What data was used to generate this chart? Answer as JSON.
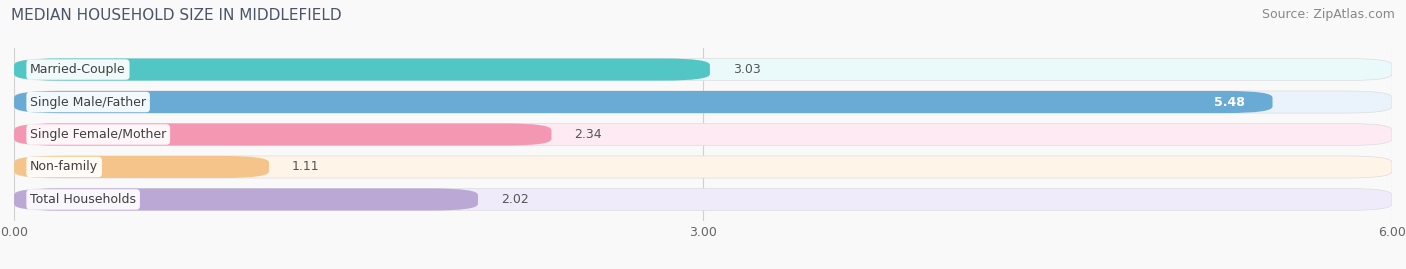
{
  "title": "MEDIAN HOUSEHOLD SIZE IN MIDDLEFIELD",
  "source": "Source: ZipAtlas.com",
  "categories": [
    "Married-Couple",
    "Single Male/Father",
    "Single Female/Mother",
    "Non-family",
    "Total Households"
  ],
  "values": [
    3.03,
    5.48,
    2.34,
    1.11,
    2.02
  ],
  "bar_colors": [
    "#52C5C5",
    "#6AABD6",
    "#F497B2",
    "#F5C48A",
    "#BBA8D4"
  ],
  "bg_colors": [
    "#EAFAFB",
    "#EAF2FB",
    "#FDEAF2",
    "#FEF5E8",
    "#F0EBFA"
  ],
  "xlim": [
    0,
    6.0
  ],
  "xticks": [
    0.0,
    3.0,
    6.0
  ],
  "xticklabels": [
    "0.00",
    "3.00",
    "6.00"
  ],
  "title_fontsize": 11,
  "source_fontsize": 9,
  "label_fontsize": 9,
  "value_fontsize": 9,
  "bar_height": 0.68,
  "bar_gap": 0.32,
  "background_color": "#f9f9f9"
}
